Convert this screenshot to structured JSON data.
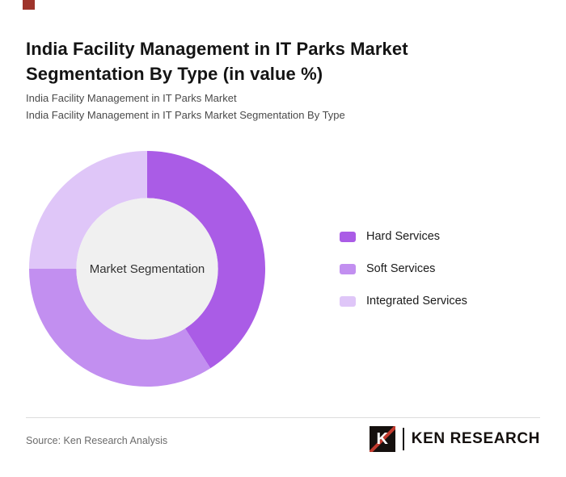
{
  "page": {
    "background": "#ffffff",
    "accent_tab_color": "#9e342b"
  },
  "header": {
    "title": "India Facility Management in IT Parks Market Segmentation By Type (in value %)",
    "subtitle_line1": "India Facility Management in IT Parks Market",
    "subtitle_line2": "India Facility Management in IT Parks Market Segmentation By Type"
  },
  "chart_data": {
    "type": "pie",
    "subtype": "donut",
    "title": "India Facility Management in IT Parks Market Segmentation By Type (in value %)",
    "unit": "value %",
    "center_label": "Market Segmentation",
    "legend_position": "right",
    "start_angle": "top",
    "direction": "clockwise",
    "inner_radius_ratio": 0.6,
    "hole_color": "#f0f0f0",
    "series": [
      {
        "name": "Hard Services",
        "value": 41,
        "color": "#aa5ce6"
      },
      {
        "name": "Soft Services",
        "value": 34,
        "color": "#c28ff0"
      },
      {
        "name": "Integrated Services",
        "value": 25,
        "color": "#dfc6f8"
      }
    ]
  },
  "footer": {
    "source": "Source: Ken Research Analysis",
    "logo": {
      "letter": "K",
      "brand": "KEN RESEARCH"
    }
  }
}
